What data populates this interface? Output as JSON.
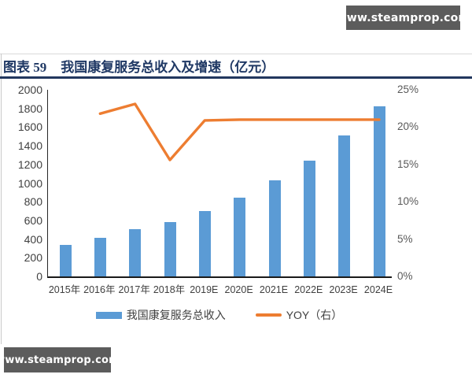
{
  "watermarks": {
    "top_right": "www.steamprop.com",
    "bottom_left": "www.steamprop.com",
    "bg_color": "#5c5c5c"
  },
  "figure_header": {
    "label": "图表 59",
    "title": "我国康复服务总收入及增速（亿元）",
    "color": "#1f3864"
  },
  "chart_data": {
    "type": "bar+line",
    "title": "我国康复服务总收入及增速（亿元）",
    "categories": [
      "2015年",
      "2016年",
      "2017年",
      "2018年",
      "2019E",
      "2020E",
      "2021E",
      "2022E",
      "2023E",
      "2024E"
    ],
    "series": [
      {
        "name": "我国康复服务总收入",
        "type": "bar",
        "axis": "left",
        "color": "#5B9BD5",
        "values": [
          335,
          410,
          505,
          585,
          700,
          845,
          1030,
          1245,
          1510,
          1820
        ]
      },
      {
        "name": "YOY（右）",
        "type": "line",
        "axis": "right",
        "color": "#ED7D31",
        "values": [
          null,
          21.8,
          23.1,
          15.6,
          20.9,
          21.0,
          21.0,
          21.0,
          21.0,
          21.0
        ]
      }
    ],
    "left_axis": {
      "min": 0,
      "max": 2000,
      "tick_step": 200,
      "tick_labels": [
        "0",
        "200",
        "400",
        "600",
        "800",
        "1000",
        "1200",
        "1400",
        "1600",
        "1800",
        "2000"
      ]
    },
    "right_axis": {
      "min": 0,
      "max": 25,
      "tick_step": 5,
      "tick_labels": [
        "0%",
        "5%",
        "10%",
        "15%",
        "20%",
        "25%"
      ]
    },
    "grid": false,
    "legend": {
      "position": "bottom",
      "items": [
        {
          "label": "我国康复服务总收入",
          "swatch": "bar",
          "color": "#5B9BD5"
        },
        {
          "label": "YOY（右）",
          "swatch": "line",
          "color": "#ED7D31"
        }
      ]
    }
  }
}
